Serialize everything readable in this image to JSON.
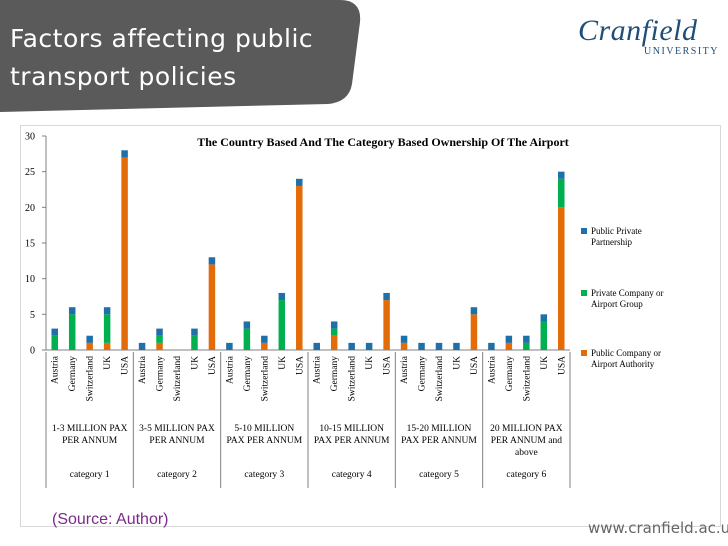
{
  "slide": {
    "title_line1": "Factors affecting public",
    "title_line2": "transport policies",
    "logo_main": "Cranfield",
    "logo_sub": "UNIVERSITY",
    "source": "(Source: Author)",
    "url": "www.cranfield.ac.uk"
  },
  "colors": {
    "banner": "#5a5a5a",
    "public_company": "#e36c09",
    "private_company": "#00b050",
    "ppp": "#1f6fa8",
    "axis": "#808080"
  },
  "chart_data": {
    "type": "bar",
    "stacked": true,
    "title": "The Country Based And The Category Based Ownership Of The Airport",
    "ylim": [
      0,
      30
    ],
    "yticks": [
      0,
      5,
      10,
      15,
      20,
      25,
      30
    ],
    "grid": false,
    "legend_position": "right",
    "categories": [
      "Austria",
      "Germany",
      "Switzerland",
      "UK",
      "USA",
      "Austria",
      "Germany",
      "Switzerland",
      "UK",
      "USA",
      "Austria",
      "Germany",
      "Switzerland",
      "UK",
      "USA",
      "Austria",
      "Germany",
      "Switzerland",
      "UK",
      "USA",
      "Austria",
      "Germany",
      "Switzerland",
      "UK",
      "USA",
      "Austria",
      "Germany",
      "Switzerland",
      "UK",
      "USA"
    ],
    "groups": [
      {
        "label": "1-3 MILLION PAX PER ANNUM",
        "category": "category 1"
      },
      {
        "label": "3-5 MILLION PAX PER ANNUM",
        "category": "category 2"
      },
      {
        "label": "5-10 MILLION PAX PER ANNUM",
        "category": "category 3"
      },
      {
        "label": "10-15 MILLION PAX PER ANNUM",
        "category": "category 4"
      },
      {
        "label": "15-20 MILLION PAX PER ANNUM",
        "category": "category 5"
      },
      {
        "label": "20 MILLION PAX PER ANNUM and above",
        "category": "category 6"
      }
    ],
    "series": [
      {
        "name": "Public Company or Airport Authority",
        "values": [
          0,
          0,
          1,
          1,
          27,
          0,
          1,
          0,
          0,
          12,
          0,
          0,
          1,
          0,
          23,
          0,
          2,
          0,
          0,
          7,
          1,
          0,
          0,
          0,
          5,
          0,
          1,
          0,
          0,
          20
        ]
      },
      {
        "name": "Private Company or Airport Group",
        "values": [
          2,
          5,
          0,
          4,
          0,
          0,
          1,
          0,
          2,
          0,
          0,
          3,
          0,
          7,
          0,
          0,
          1,
          0,
          0,
          0,
          0,
          0,
          0,
          0,
          0,
          0,
          0,
          1,
          4,
          4
        ]
      },
      {
        "name": "Public Private Partnership",
        "values": [
          1,
          1,
          1,
          1,
          1,
          1,
          1,
          0,
          1,
          1,
          1,
          1,
          1,
          1,
          1,
          1,
          1,
          1,
          1,
          1,
          1,
          1,
          1,
          1,
          1,
          1,
          1,
          1,
          1,
          1
        ]
      }
    ]
  }
}
